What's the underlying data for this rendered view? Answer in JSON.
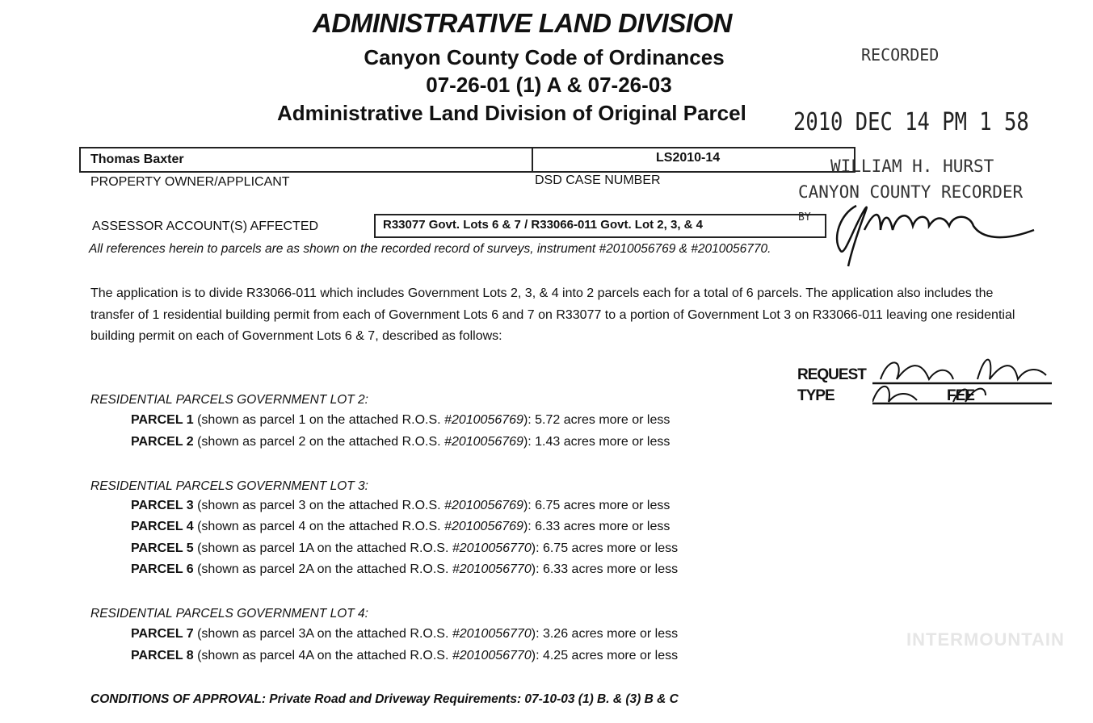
{
  "header": {
    "title": "ADMINISTRATIVE LAND DIVISION",
    "subtitle1": "Canyon County Code of Ordinances",
    "subtitle2": "07-26-01 (1) A & 07-26-03",
    "subtitle3": "Administrative Land Division of Original Parcel"
  },
  "stamp": {
    "recorded": "RECORDED",
    "datetime": "2010 DEC 14  PM 1 58",
    "recorder_name": "WILLIAM H. HURST",
    "recorder_title": "CANYON COUNTY RECORDER",
    "by": "BY"
  },
  "fields": {
    "owner_value": "Thomas Baxter",
    "owner_label": "PROPERTY OWNER/APPLICANT",
    "case_value": "LS2010-14",
    "case_label": "DSD CASE NUMBER",
    "assessor_label": "ASSESSOR ACCOUNT(S) AFFECTED",
    "assessor_value": "R33077  Govt. Lots 6 & 7 / R33066-011 Govt. Lot 2, 3, & 4"
  },
  "references": "All references herein to parcels are as shown on the recorded record of surveys, instrument #2010056769 & #2010056770.",
  "application": "The application is to divide R33066-011 which includes Government Lots 2, 3, & 4 into 2 parcels each for a total of 6 parcels. The application also includes the transfer of 1 residential building permit from each of Government Lots 6 and 7 on R33077 to a portion of Government Lot 3 on R33066-011 leaving one residential building permit on each of Government Lots 6 & 7, described as follows:",
  "request_stamp": {
    "request": "REQUEST",
    "type": "TYPE",
    "fee": "FEE"
  },
  "sections": [
    {
      "heading": "RESIDENTIAL PARCELS GOVERNMENT LOT 2:",
      "parcels": [
        {
          "label": "PARCEL 1",
          "pre": " (shown as parcel 1 on the attached R.O.S. ",
          "ros": "#2010056769",
          "post": "): 5.72 acres more or less"
        },
        {
          "label": "PARCEL 2",
          "pre": " (shown as parcel 2 on the attached R.O.S. ",
          "ros": "#2010056769",
          "post": "): 1.43 acres more or less"
        }
      ]
    },
    {
      "heading": "RESIDENTIAL PARCELS GOVERNMENT LOT 3:",
      "parcels": [
        {
          "label": "PARCEL 3",
          "pre": " (shown as parcel 3 on the attached R.O.S. ",
          "ros": "#2010056769",
          "post": "): 6.75 acres more or less"
        },
        {
          "label": "PARCEL 4",
          "pre": " (shown as parcel 4 on the attached R.O.S. ",
          "ros": "#2010056769",
          "post": "): 6.33 acres more or less"
        },
        {
          "label": "PARCEL 5",
          "pre": " (shown as parcel 1A on the attached R.O.S. ",
          "ros": "#2010056770",
          "post": "): 6.75 acres more or less"
        },
        {
          "label": "PARCEL 6",
          "pre": " (shown as parcel 2A on the attached R.O.S. ",
          "ros": "#2010056770",
          "post": "): 6.33 acres more or less"
        }
      ]
    },
    {
      "heading": "RESIDENTIAL PARCELS GOVERNMENT LOT 4:",
      "parcels": [
        {
          "label": "PARCEL 7",
          "pre": " (shown as parcel 3A on the attached R.O.S. ",
          "ros": "#2010056770",
          "post": "): 3.26 acres more or less"
        },
        {
          "label": "PARCEL 8",
          "pre": " (shown as parcel 4A on the attached R.O.S. ",
          "ros": "#2010056770",
          "post": "): 4.25 acres more or less"
        }
      ]
    }
  ],
  "conditions": "CONDITIONS OF APPROVAL: Private Road and Driveway Requirements: 07-10-03 (1) B. & (3) B & C",
  "watermark": "INTERMOUNTAIN"
}
